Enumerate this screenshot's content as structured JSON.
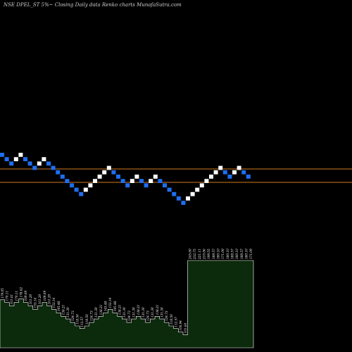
{
  "title": "NSE DPEL_ST 5%~  Closing Daily data  Renko  charts MunafaSutra.com",
  "chart_data": {
    "type": "renko",
    "brick_direction": [
      "down",
      "down",
      "down",
      "up",
      "up",
      "down",
      "down",
      "down",
      "up",
      "up",
      "down",
      "down",
      "down",
      "down",
      "down",
      "down",
      "down",
      "down",
      "up",
      "up",
      "up",
      "up",
      "up",
      "up",
      "down",
      "down",
      "down",
      "down",
      "up",
      "up",
      "down",
      "down",
      "up",
      "up",
      "down",
      "down",
      "down",
      "down",
      "down",
      "down",
      "up",
      "up",
      "up",
      "up",
      "up",
      "up",
      "up",
      "up",
      "down",
      "down",
      "up",
      "up",
      "down",
      "down"
    ],
    "reference_lines": [
      "upper",
      "lower"
    ],
    "volume_bars": {
      "labels": [
        "179.05",
        "170.11",
        "161.61",
        "170.11",
        "178.62",
        "169.69",
        "161.20",
        "153.14",
        "161.20",
        "169.69",
        "161.20",
        "153.14",
        "145.48",
        "138.21",
        "131.30",
        "124.73",
        "118.50",
        "112.57",
        "118.50",
        "124.73",
        "131.30",
        "138.21",
        "145.48",
        "153.14",
        "145.48",
        "138.21",
        "131.30",
        "124.73",
        "131.30",
        "138.21",
        "131.30",
        "124.73",
        "131.30",
        "138.21",
        "131.30",
        "124.73",
        "118.50",
        "112.57",
        "106.94",
        "101.60",
        "245.00",
        "232.75",
        "221.11",
        "210.06",
        "199.55",
        "189.57",
        "180.10",
        "171.09",
        "180.10",
        "189.57",
        "180.10",
        "189.57",
        "180.10",
        "171.09"
      ],
      "relative_heights": [
        0.55,
        0.52,
        0.48,
        0.52,
        0.56,
        0.52,
        0.48,
        0.44,
        0.48,
        0.52,
        0.48,
        0.44,
        0.4,
        0.36,
        0.33,
        0.29,
        0.25,
        0.22,
        0.25,
        0.29,
        0.33,
        0.36,
        0.4,
        0.44,
        0.4,
        0.36,
        0.33,
        0.29,
        0.33,
        0.36,
        0.33,
        0.29,
        0.33,
        0.36,
        0.33,
        0.29,
        0.25,
        0.22,
        0.18,
        0.15,
        1.0,
        1.0,
        1.0,
        1.0,
        1.0,
        1.0,
        1.0,
        1.0,
        1.0,
        1.0,
        1.0,
        1.0,
        1.0,
        1.0
      ]
    },
    "colors": {
      "background": "#000000",
      "up_brick": "#ffffff",
      "down_brick": "#1e6ef0",
      "reference_line": "#d27a1e",
      "volume_fill": "#0c2a0c",
      "volume_stroke": "#ffffff"
    }
  }
}
